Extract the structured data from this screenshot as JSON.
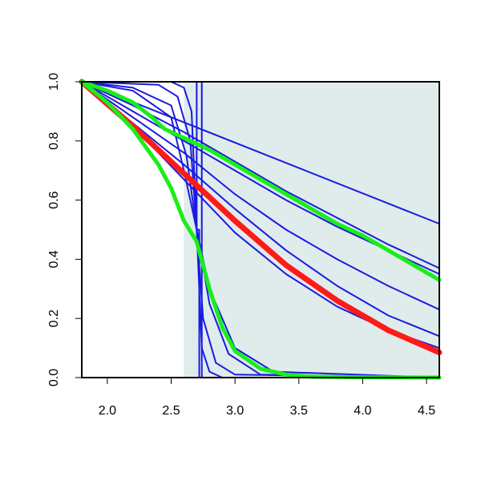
{
  "chart_data": {
    "type": "line",
    "title": "",
    "xlabel": "",
    "ylabel": "",
    "xlim": [
      1.8,
      4.6
    ],
    "ylim": [
      0.0,
      1.0
    ],
    "grid": false,
    "legend": "none",
    "x_ticks": [
      "2.0",
      "2.5",
      "3.0",
      "3.5",
      "4.0",
      "4.5"
    ],
    "y_ticks": [
      "0.0",
      "0.2",
      "0.4",
      "0.6",
      "0.8",
      "1.0"
    ],
    "colors": {
      "shaded_region": "#dfeceb",
      "blue_lines": "#1a1ae0",
      "red_line": "#ff1a1a",
      "green_lines": "#1aee1a",
      "axis": "#000000"
    },
    "shaded_region": {
      "x_from": 2.6,
      "x_to": 4.6,
      "y_from": 0.0,
      "y_to": 1.0
    },
    "series": [
      {
        "color": "blue",
        "x": [
          1.8,
          4.6
        ],
        "y": [
          1.0,
          0.52
        ]
      },
      {
        "color": "blue",
        "x": [
          1.8,
          2.2,
          2.6,
          3.0,
          3.4,
          3.8,
          4.2,
          4.6
        ],
        "y": [
          1.0,
          0.92,
          0.83,
          0.73,
          0.63,
          0.54,
          0.45,
          0.37
        ]
      },
      {
        "color": "blue",
        "x": [
          1.8,
          2.2,
          2.6,
          3.0,
          3.4,
          3.8,
          4.2,
          4.6
        ],
        "y": [
          1.0,
          0.9,
          0.8,
          0.7,
          0.6,
          0.51,
          0.43,
          0.35
        ]
      },
      {
        "color": "blue",
        "x": [
          1.8,
          2.2,
          2.6,
          3.0,
          3.4,
          3.8,
          4.2,
          4.6
        ],
        "y": [
          1.0,
          0.88,
          0.76,
          0.62,
          0.5,
          0.4,
          0.31,
          0.23
        ]
      },
      {
        "color": "blue",
        "x": [
          1.8,
          2.2,
          2.6,
          3.0,
          3.4,
          3.8,
          4.2,
          4.6
        ],
        "y": [
          1.0,
          0.86,
          0.72,
          0.57,
          0.43,
          0.31,
          0.21,
          0.14
        ]
      },
      {
        "color": "blue",
        "x": [
          1.8,
          2.2,
          2.6,
          3.0,
          3.4,
          3.8,
          4.2,
          4.6
        ],
        "y": [
          1.0,
          0.85,
          0.67,
          0.49,
          0.35,
          0.24,
          0.16,
          0.1
        ]
      },
      {
        "color": "blue",
        "x": [
          1.8,
          2.7,
          2.7,
          2.72,
          2.72,
          4.6
        ],
        "y": [
          1.0,
          1.0,
          0.5,
          0.5,
          0.0,
          0.0
        ]
      },
      {
        "color": "blue",
        "x": [
          1.8,
          2.5,
          2.6,
          2.66,
          2.7,
          2.74,
          2.8,
          2.9,
          4.6
        ],
        "y": [
          1.0,
          1.0,
          0.98,
          0.9,
          0.5,
          0.1,
          0.02,
          0.0,
          0.0
        ]
      },
      {
        "color": "blue",
        "x": [
          1.8,
          2.4,
          2.55,
          2.65,
          2.7,
          2.75,
          2.85,
          3.0,
          4.6
        ],
        "y": [
          1.0,
          0.99,
          0.95,
          0.8,
          0.5,
          0.2,
          0.05,
          0.01,
          0.0
        ]
      },
      {
        "color": "blue",
        "x": [
          1.8,
          2.2,
          2.5,
          2.62,
          2.7,
          2.8,
          2.95,
          3.2,
          4.6
        ],
        "y": [
          1.0,
          0.98,
          0.92,
          0.75,
          0.5,
          0.25,
          0.08,
          0.01,
          0.0
        ]
      },
      {
        "color": "blue",
        "x": [
          1.8,
          2.2,
          2.5,
          2.6,
          2.7,
          2.8,
          3.0,
          3.3,
          4.6
        ],
        "y": [
          1.0,
          0.97,
          0.88,
          0.7,
          0.5,
          0.3,
          0.1,
          0.02,
          0.0
        ]
      },
      {
        "color": "blue",
        "x": [
          1.8,
          2.74,
          2.74,
          4.6
        ],
        "y": [
          1.0,
          1.0,
          0.0,
          0.0
        ]
      },
      {
        "color": "red",
        "x": [
          1.8,
          2.2,
          2.6,
          3.0,
          3.4,
          3.8,
          4.2,
          4.6
        ],
        "y": [
          1.0,
          0.85,
          0.69,
          0.53,
          0.38,
          0.26,
          0.16,
          0.085
        ]
      },
      {
        "color": "green",
        "x": [
          1.8,
          2.0,
          2.2,
          2.35,
          2.45,
          2.6,
          2.8,
          3.0,
          3.2,
          3.4,
          3.6,
          3.8,
          4.0,
          4.2,
          4.4,
          4.6
        ],
        "y": [
          1.0,
          0.97,
          0.93,
          0.88,
          0.84,
          0.81,
          0.77,
          0.72,
          0.67,
          0.62,
          0.57,
          0.52,
          0.48,
          0.43,
          0.38,
          0.33
        ]
      },
      {
        "color": "green",
        "x": [
          1.8,
          2.0,
          2.2,
          2.4,
          2.5,
          2.6,
          2.7,
          2.8,
          2.9,
          3.0,
          3.2,
          3.4,
          3.6,
          4.0,
          4.6
        ],
        "y": [
          1.0,
          0.93,
          0.84,
          0.72,
          0.64,
          0.53,
          0.46,
          0.3,
          0.17,
          0.09,
          0.03,
          0.01,
          0.003,
          0.001,
          0.0
        ]
      }
    ]
  }
}
